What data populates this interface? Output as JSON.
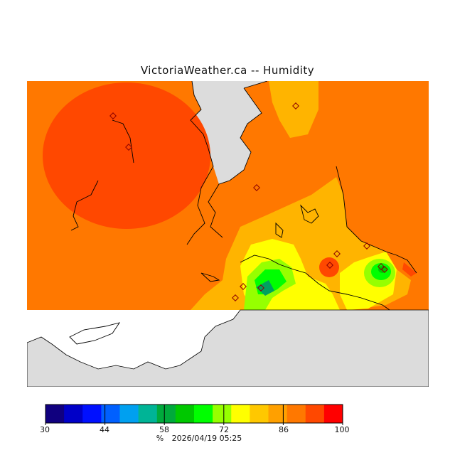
{
  "title": "VictoriaWeather.ca -- Humidity",
  "legend": {
    "unit": "%",
    "timestamp": "2026/04/19 05:25",
    "ticks": [
      "30",
      "44",
      "58",
      "72",
      "86",
      "100"
    ],
    "colors": [
      "#10007f",
      "#0000c8",
      "#0010ff",
      "#0060ff",
      "#00a0f0",
      "#00b496",
      "#00aa3c",
      "#00c800",
      "#00ff00",
      "#96ff00",
      "#ffff00",
      "#ffc800",
      "#ffa000",
      "#ff7800",
      "#ff4800",
      "#ff0000"
    ]
  },
  "map": {
    "background_land": "#dcdcdc",
    "unfilled_water": "#ffffff",
    "fill_colors": {
      "humidity_88": "#ff7800",
      "humidity_94": "#ff4800",
      "humidity_84": "#ffb400",
      "humidity_80": "#ffff00",
      "humidity_76": "#96ff00",
      "humidity_70": "#00ff00",
      "humidity_66": "#00c800",
      "humidity_60": "#00a060"
    }
  }
}
